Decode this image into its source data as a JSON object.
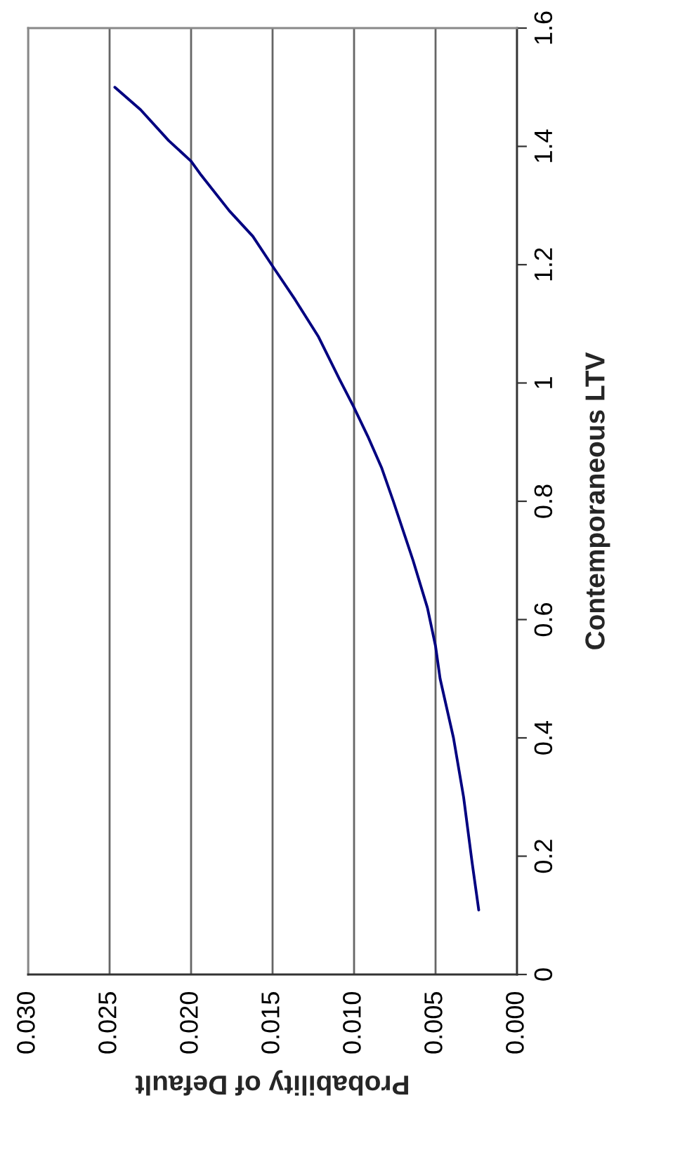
{
  "chart_data": {
    "type": "line",
    "xlabel": "Probability of Default",
    "ylabel": "Contemporaneous LTV",
    "xlim": [
      0.03,
      0.0
    ],
    "xticks": [
      {
        "value": 0.03,
        "label": "0.030"
      },
      {
        "value": 0.025,
        "label": "0.025"
      },
      {
        "value": 0.02,
        "label": "0.020"
      },
      {
        "value": 0.015,
        "label": "0.015"
      },
      {
        "value": 0.01,
        "label": "0.010"
      },
      {
        "value": 0.005,
        "label": "0.005"
      },
      {
        "value": 0.0,
        "label": "0.000"
      }
    ],
    "ylim": [
      0,
      1.6
    ],
    "yticks": [
      0,
      0.2,
      0.4,
      0.6,
      0.8,
      1,
      1.2,
      1.4,
      1.6
    ],
    "grid": "x",
    "marker": "none",
    "line_style": "solid",
    "series": [
      {
        "color": "#000080",
        "x": [
          0.00235,
          0.00276,
          0.00328,
          0.0039,
          0.00472,
          0.005,
          0.0055,
          0.00638,
          0.00759,
          0.0083,
          0.00916,
          0.01003,
          0.01089,
          0.01218,
          0.01362,
          0.01506,
          0.01621,
          0.01765,
          0.01937,
          0.02,
          0.02138,
          0.0231,
          0.02468
        ],
        "values": [
          0.109,
          0.19,
          0.3,
          0.4,
          0.5,
          0.555,
          0.62,
          0.7,
          0.8,
          0.856,
          0.91,
          0.96,
          1.006,
          1.078,
          1.141,
          1.2,
          1.248,
          1.291,
          1.351,
          1.375,
          1.41,
          1.462,
          1.5
        ]
      }
    ]
  }
}
